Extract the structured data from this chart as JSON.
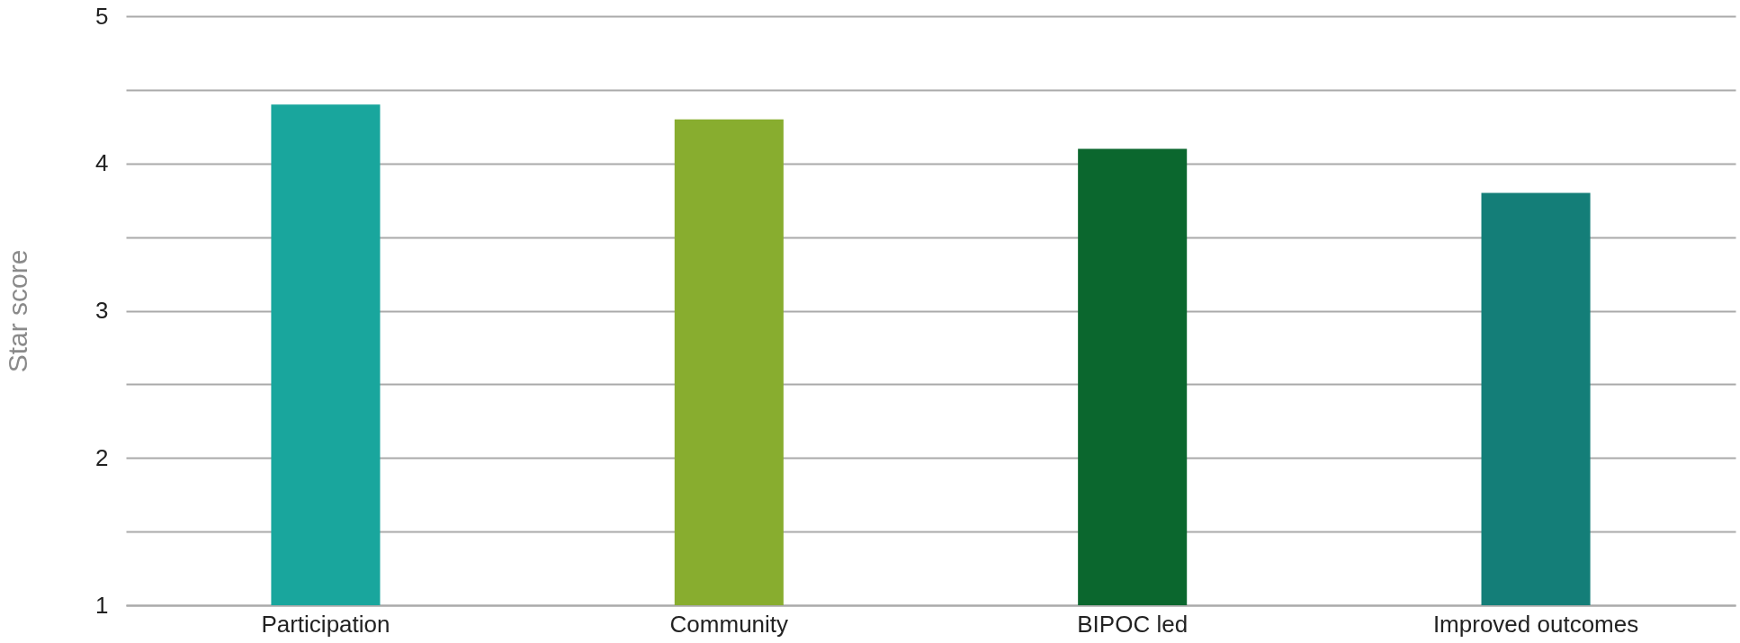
{
  "chart_data": {
    "type": "bar",
    "ylabel": "Star score",
    "categories": [
      "Participation",
      "Community",
      "BIPOC led",
      "Improved outcomes"
    ],
    "values": [
      4.4,
      4.3,
      4.1,
      3.8
    ],
    "colors": [
      "#19a69d",
      "#88ad2f",
      "#0b672e",
      "#147e78"
    ],
    "ylim": [
      1,
      5
    ],
    "yticks": [
      1,
      {
        "value": 1.5,
        "label": null
      },
      2,
      {
        "value": 2.5,
        "label": null
      },
      3,
      {
        "value": 3.5,
        "label": null
      },
      4,
      {
        "value": 4.5,
        "label": null
      },
      5
    ],
    "grid": "y",
    "legend": false
  }
}
